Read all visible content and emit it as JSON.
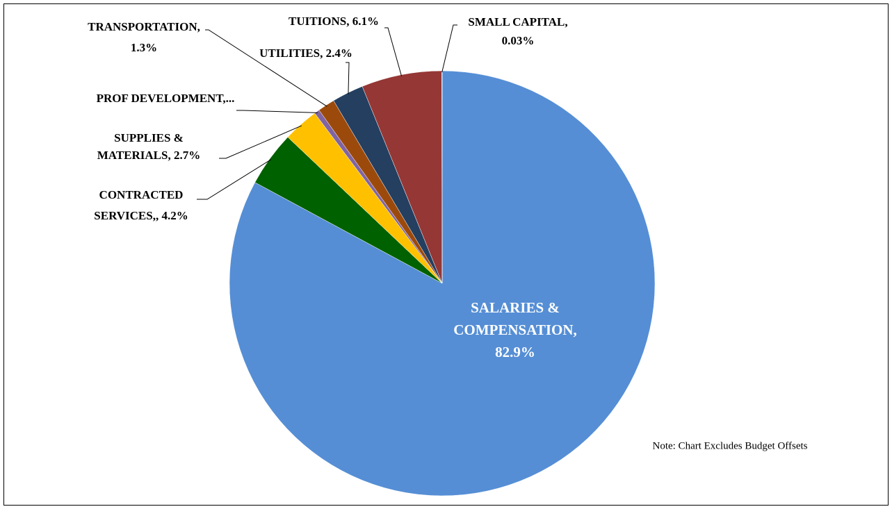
{
  "chart_data": {
    "type": "pie",
    "categories": [
      [
        "SALARIES &",
        "COMPENSATION,",
        "82.9%"
      ],
      [
        "CONTRACTED",
        "SERVICES,, 4.2%"
      ],
      [
        "SUPPLIES &",
        "MATERIALS, 2.7%"
      ],
      [
        "PROF DEVELOPMENT,..."
      ],
      [
        "TRANSPORTATION,",
        "1.3%"
      ],
      [
        "UTILITIES,  2.4%"
      ],
      [
        "TUITIONS, 6.1%"
      ],
      [
        "SMALL CAPITAL,",
        "0.03%"
      ]
    ],
    "values": [
      82.9,
      4.2,
      2.7,
      0.4,
      1.3,
      2.4,
      6.1,
      0.03
    ],
    "colors": [
      "#558ed5",
      "#006100",
      "#ffc000",
      "#8064a2",
      "#9c4a0c",
      "#243f60",
      "#953735",
      "#4bacc6"
    ],
    "note": "Note: Chart  Excludes Budget Offsets"
  }
}
